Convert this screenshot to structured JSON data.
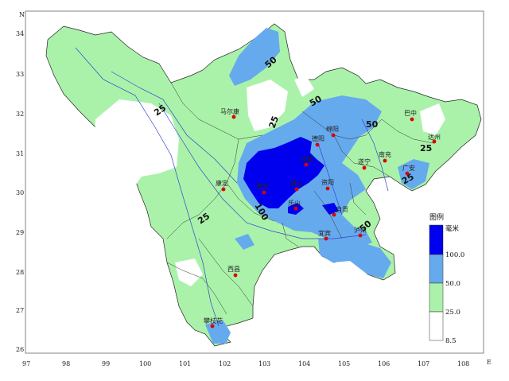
{
  "axes": {
    "x_label": "E",
    "y_label": "N",
    "x_ticks": [
      "97",
      "98",
      "99",
      "100",
      "101",
      "102",
      "103",
      "104",
      "105",
      "106",
      "107",
      "108"
    ],
    "y_ticks": [
      "34",
      "33",
      "32",
      "31",
      "30",
      "29",
      "28",
      "27",
      "26"
    ]
  },
  "contour_labels": [
    "50",
    "25",
    "50",
    "50",
    "25",
    "25",
    "25",
    "100",
    "50",
    "25"
  ],
  "cities": [
    "马尔康",
    "绵阳",
    "南充",
    "巴中",
    "达州",
    "德阳",
    "成都",
    "遂宁",
    "广安",
    "康定",
    "雅安",
    "眉山",
    "资阳",
    "乐山",
    "自贡",
    "泸州",
    "宜宾",
    "西昌",
    "攀枝花"
  ],
  "legend": {
    "title": "图例",
    "unit": "毫米",
    "labels": [
      "100.0",
      "50.0",
      "25.0",
      "8.5"
    ]
  },
  "colors": {
    "heavy": "#0000ee",
    "moderate": "#66aaee",
    "light": "#aaf2aa",
    "none": "#ffffff",
    "city_dot": "#dd0000",
    "river": "#3344cc"
  }
}
